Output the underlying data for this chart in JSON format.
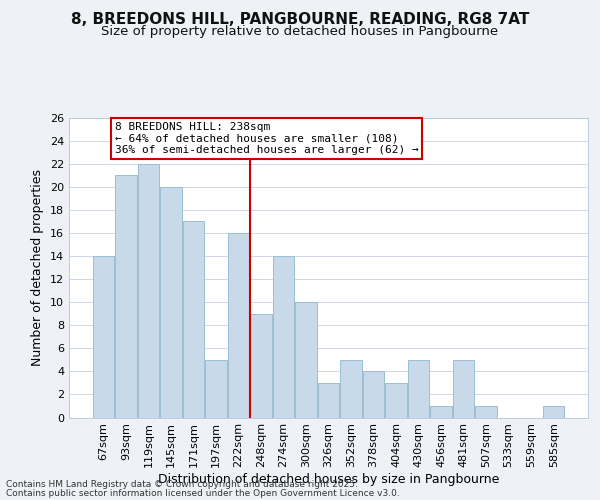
{
  "title": "8, BREEDONS HILL, PANGBOURNE, READING, RG8 7AT",
  "subtitle": "Size of property relative to detached houses in Pangbourne",
  "xlabel": "Distribution of detached houses by size in Pangbourne",
  "ylabel": "Number of detached properties",
  "categories": [
    "67sqm",
    "93sqm",
    "119sqm",
    "145sqm",
    "171sqm",
    "197sqm",
    "222sqm",
    "248sqm",
    "274sqm",
    "300sqm",
    "326sqm",
    "352sqm",
    "378sqm",
    "404sqm",
    "430sqm",
    "456sqm",
    "481sqm",
    "507sqm",
    "533sqm",
    "559sqm",
    "585sqm"
  ],
  "values": [
    14,
    21,
    22,
    20,
    17,
    5,
    16,
    9,
    14,
    10,
    3,
    5,
    4,
    3,
    5,
    1,
    5,
    1,
    0,
    0,
    1
  ],
  "bar_color": "#c8d9ea",
  "bar_edge_color": "#9bbdd4",
  "annotation_box_text_line1": "8 BREEDONS HILL: 238sqm",
  "annotation_box_text_line2": "← 64% of detached houses are smaller (108)",
  "annotation_box_text_line3": "36% of semi-detached houses are larger (62) →",
  "annotation_box_color": "#ffffff",
  "annotation_box_edge_color": "#cc0000",
  "annotation_line_color": "#cc0000",
  "ylim": [
    0,
    26
  ],
  "yticks": [
    0,
    2,
    4,
    6,
    8,
    10,
    12,
    14,
    16,
    18,
    20,
    22,
    24,
    26
  ],
  "footer_line1": "Contains HM Land Registry data © Crown copyright and database right 2025.",
  "footer_line2": "Contains public sector information licensed under the Open Government Licence v3.0.",
  "background_color": "#eef2f7",
  "plot_background_color": "#ffffff",
  "grid_color": "#d0d8e8",
  "title_fontsize": 11,
  "subtitle_fontsize": 9.5,
  "axis_label_fontsize": 9,
  "tick_fontsize": 8,
  "footer_fontsize": 6.5,
  "annotation_fontsize": 8
}
